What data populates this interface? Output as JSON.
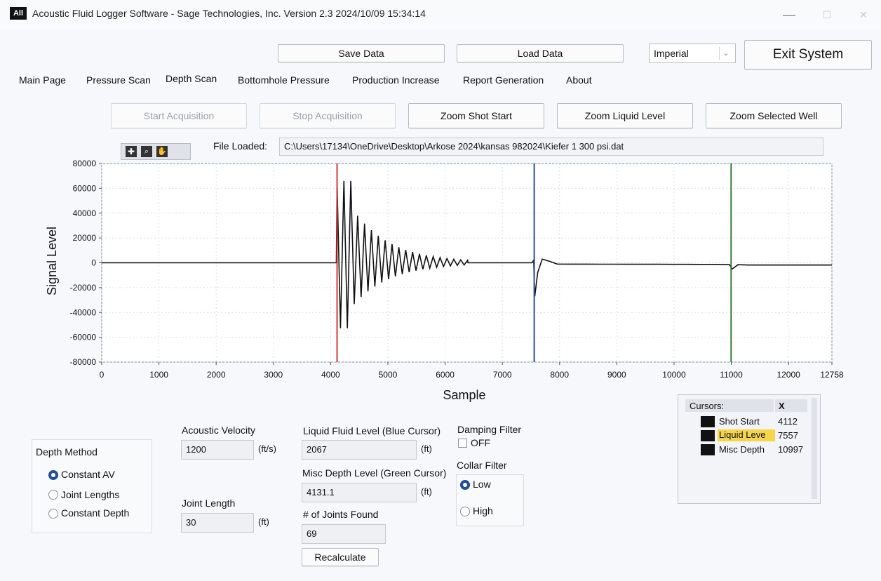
{
  "window": {
    "title": "Acoustic Fluid Logger Software - Sage Technologies, Inc.  Version 2.3 2024/10/09 15:34:14",
    "icon": "All",
    "minimize": "—",
    "maximize": "☐",
    "close": "✕"
  },
  "toolbar": {
    "save_label": "Save Data",
    "load_label": "Load Data",
    "units_selected": "Imperial",
    "exit_label": "Exit System"
  },
  "tabs": [
    "Main Page",
    "Pressure Scan",
    "Depth Scan",
    "Bottomhole Pressure",
    "Production Increase",
    "Report Generation",
    "About"
  ],
  "active_tab": "Depth Scan",
  "actions": {
    "start": "Start Acquisition",
    "stop": "Stop Acquisition",
    "zoom_shot": "Zoom Shot Start",
    "zoom_liquid": "Zoom Liquid Level",
    "zoom_well": "Zoom Selected Well"
  },
  "file": {
    "label": "File Loaded:",
    "path": "C:\\Users\\17134\\OneDrive\\Desktop\\Arkose 2024\\kansas 982024\\Kiefer 1 300 psi.dat"
  },
  "chart_data": {
    "type": "line",
    "xlabel": "Sample",
    "ylabel": "Signal Level",
    "xlim": [
      0,
      12758
    ],
    "ylim": [
      -80000,
      80000
    ],
    "x_ticks": [
      0,
      1000,
      2000,
      3000,
      4000,
      5000,
      6000,
      7000,
      8000,
      9000,
      10000,
      11000,
      12000,
      12758
    ],
    "y_ticks": [
      80000,
      60000,
      40000,
      20000,
      0,
      -20000,
      -40000,
      -60000,
      -80000
    ],
    "grid": true,
    "cursors": [
      {
        "name": "Shot Start",
        "x": 4112,
        "color": "#d23a3a"
      },
      {
        "name": "Liquid Level",
        "x": 7557,
        "color": "#2b4f9a"
      },
      {
        "name": "Misc Depth",
        "x": 10997,
        "color": "#2e7d3b"
      }
    ],
    "series": [
      {
        "color": "#111111"
      }
    ]
  },
  "depth_method": {
    "title": "Depth Method",
    "options": [
      "Constant AV",
      "Joint Lengths",
      "Constant Depth"
    ],
    "selected": "Constant AV"
  },
  "acoustic_velocity": {
    "label": "Acoustic Velocity",
    "value": "1200",
    "unit": "(ft/s)"
  },
  "joint_length": {
    "label": "Joint Length",
    "value": "30",
    "unit": "(ft)"
  },
  "liquid_level": {
    "label": "Liquid Fluid Level (Blue Cursor)",
    "value": "2067",
    "unit": "(ft)"
  },
  "misc_depth": {
    "label": "Misc Depth Level (Green Cursor)",
    "value": "4131.1",
    "unit": "(ft)"
  },
  "joints_found": {
    "label": "# of Joints Found",
    "value": "69"
  },
  "recalculate_label": "Recalculate",
  "damping": {
    "label": "Damping Filter",
    "state": "OFF"
  },
  "collar": {
    "label": "Collar Filter",
    "options": [
      "Low",
      "High"
    ],
    "selected": "Low"
  },
  "cursor_table": {
    "headers": [
      "Cursors:",
      "X"
    ],
    "rows": [
      {
        "name": "Shot Start",
        "x": "4112"
      },
      {
        "name": "Liquid Leve",
        "x": "7557"
      },
      {
        "name": "Misc Depth",
        "x": "10997"
      }
    ]
  }
}
